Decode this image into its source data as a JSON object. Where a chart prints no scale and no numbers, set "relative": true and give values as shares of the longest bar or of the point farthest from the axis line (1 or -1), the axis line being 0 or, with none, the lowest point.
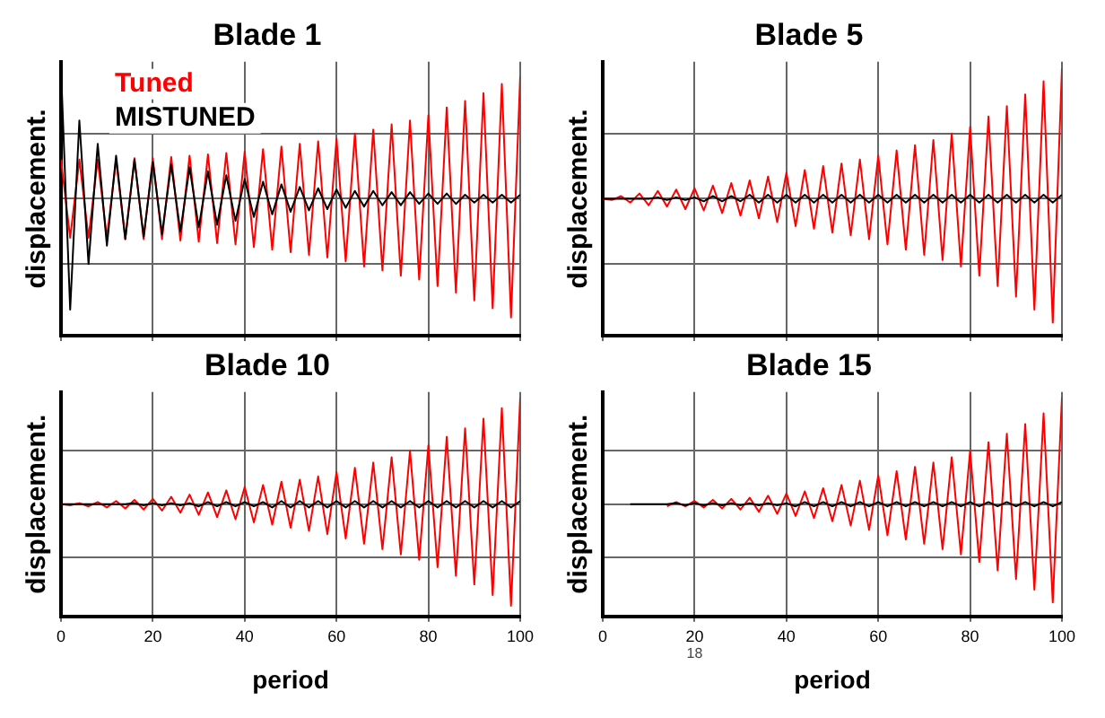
{
  "chart_data": [
    {
      "type": "line",
      "title": "Blade 1",
      "ylabel": "displacement.",
      "relative": true,
      "grid": true,
      "legend": false,
      "tick_labels": false,
      "marker": "none",
      "xlim": [
        0,
        100
      ],
      "xticks": [
        0,
        20,
        40,
        60,
        80,
        100
      ],
      "x": [
        0,
        2,
        4,
        6,
        8,
        10,
        12,
        14,
        16,
        18,
        20,
        22,
        24,
        26,
        28,
        30,
        32,
        34,
        36,
        38,
        40,
        42,
        44,
        46,
        48,
        50,
        52,
        54,
        56,
        58,
        60,
        62,
        64,
        66,
        68,
        70,
        72,
        74,
        76,
        78,
        80,
        82,
        84,
        86,
        88,
        90,
        92,
        94,
        96,
        98,
        100
      ],
      "series": [
        {
          "name": "Tuned",
          "color": "#ff0000",
          "values": [
            0.3,
            -0.3,
            0.3,
            -0.3,
            0.3,
            -0.3,
            0.3,
            -0.31,
            0.31,
            -0.31,
            0.31,
            -0.31,
            0.32,
            -0.32,
            0.33,
            -0.33,
            0.34,
            -0.34,
            0.35,
            -0.35,
            0.36,
            -0.37,
            0.38,
            -0.39,
            0.4,
            -0.41,
            0.42,
            -0.43,
            0.44,
            -0.45,
            0.46,
            -0.48,
            0.5,
            -0.52,
            0.53,
            -0.55,
            0.57,
            -0.59,
            0.6,
            -0.62,
            0.64,
            -0.67,
            0.7,
            -0.72,
            0.75,
            -0.78,
            0.81,
            -0.84,
            0.88,
            -0.91,
            0.94
          ]
        },
        {
          "name": "MISTUNED",
          "color": "#000000",
          "values": [
            1.0,
            -0.85,
            0.6,
            -0.5,
            0.42,
            -0.36,
            0.33,
            -0.31,
            0.3,
            -0.29,
            0.28,
            -0.27,
            0.26,
            -0.25,
            0.24,
            -0.22,
            0.21,
            -0.2,
            0.18,
            -0.17,
            0.15,
            -0.14,
            0.13,
            -0.12,
            0.11,
            -0.1,
            0.09,
            -0.09,
            0.08,
            -0.08,
            0.07,
            -0.07,
            0.06,
            -0.06,
            0.06,
            -0.05,
            0.05,
            -0.05,
            0.05,
            -0.04,
            0.04,
            -0.04,
            0.04,
            -0.04,
            0.03,
            -0.03,
            0.03,
            -0.03,
            0.03,
            -0.03,
            0.03
          ]
        }
      ]
    },
    {
      "type": "line",
      "title": "Blade 5",
      "ylabel": "displacement.",
      "relative": true,
      "grid": true,
      "legend": false,
      "tick_labels": false,
      "marker": "none",
      "xlim": [
        0,
        100
      ],
      "xticks": [
        0,
        20,
        40,
        60,
        80,
        100
      ],
      "x": [
        0,
        2,
        4,
        6,
        8,
        10,
        12,
        14,
        16,
        18,
        20,
        22,
        24,
        26,
        28,
        30,
        32,
        34,
        36,
        38,
        40,
        42,
        44,
        46,
        48,
        50,
        52,
        54,
        56,
        58,
        60,
        62,
        64,
        66,
        68,
        70,
        72,
        74,
        76,
        78,
        80,
        82,
        84,
        86,
        88,
        90,
        92,
        94,
        96,
        98,
        100
      ],
      "series": [
        {
          "color": "#ff0000",
          "values": [
            0,
            -0.01,
            0.02,
            -0.03,
            0.04,
            -0.05,
            0.06,
            -0.06,
            0.07,
            -0.08,
            0.08,
            -0.09,
            0.1,
            -0.11,
            0.12,
            -0.13,
            0.14,
            -0.15,
            0.17,
            -0.18,
            0.2,
            -0.21,
            0.22,
            -0.23,
            0.25,
            -0.26,
            0.27,
            -0.28,
            0.3,
            -0.31,
            0.33,
            -0.35,
            0.37,
            -0.39,
            0.41,
            -0.43,
            0.45,
            -0.47,
            0.5,
            -0.52,
            0.55,
            -0.59,
            0.63,
            -0.67,
            0.71,
            -0.75,
            0.8,
            -0.85,
            0.9,
            -0.95,
            1.0
          ]
        },
        {
          "color": "#000000",
          "values": [
            0,
            0,
            0,
            0,
            0,
            0,
            0.01,
            -0.01,
            0.01,
            -0.01,
            0.01,
            -0.02,
            0.02,
            -0.02,
            0.02,
            -0.02,
            0.03,
            -0.03,
            0.03,
            -0.03,
            0.03,
            -0.03,
            0.03,
            -0.03,
            0.03,
            -0.03,
            0.03,
            -0.03,
            0.03,
            -0.03,
            0.03,
            -0.03,
            0.03,
            -0.03,
            0.03,
            -0.03,
            0.03,
            -0.03,
            0.03,
            -0.03,
            0.03,
            -0.03,
            0.03,
            -0.03,
            0.03,
            -0.03,
            0.03,
            -0.03,
            0.03,
            -0.03,
            0.03
          ]
        }
      ]
    },
    {
      "type": "line",
      "title": "Blade 10",
      "xlabel": "period",
      "ylabel": "displacement.",
      "relative": true,
      "grid": true,
      "legend": false,
      "tick_labels": "x",
      "marker": "none",
      "xlim": [
        0,
        100
      ],
      "xticks": [
        0,
        20,
        40,
        60,
        80,
        100
      ],
      "x": [
        0,
        2,
        4,
        6,
        8,
        10,
        12,
        14,
        16,
        18,
        20,
        22,
        24,
        26,
        28,
        30,
        32,
        34,
        36,
        38,
        40,
        42,
        44,
        46,
        48,
        50,
        52,
        54,
        56,
        58,
        60,
        62,
        64,
        66,
        68,
        70,
        72,
        74,
        76,
        78,
        80,
        82,
        84,
        86,
        88,
        90,
        92,
        94,
        96,
        98,
        100
      ],
      "series": [
        {
          "color": "#ff0000",
          "values": [
            0,
            -0.01,
            0.01,
            -0.02,
            0.02,
            -0.03,
            0.03,
            -0.04,
            0.04,
            -0.05,
            0.05,
            -0.06,
            0.07,
            -0.08,
            0.09,
            -0.1,
            0.11,
            -0.12,
            0.13,
            -0.14,
            0.16,
            -0.17,
            0.18,
            -0.19,
            0.21,
            -0.22,
            0.23,
            -0.25,
            0.26,
            -0.28,
            0.3,
            -0.32,
            0.34,
            -0.37,
            0.39,
            -0.42,
            0.44,
            -0.47,
            0.5,
            -0.52,
            0.55,
            -0.59,
            0.63,
            -0.67,
            0.71,
            -0.75,
            0.8,
            -0.85,
            0.9,
            -0.95,
            1.0
          ]
        },
        {
          "color": "#000000",
          "values": [
            0,
            0,
            0,
            0,
            0,
            0,
            0,
            0,
            0.01,
            -0.01,
            0.01,
            -0.01,
            0.01,
            -0.01,
            0.01,
            -0.02,
            0.02,
            -0.02,
            0.02,
            -0.02,
            0.02,
            -0.02,
            0.02,
            -0.03,
            0.03,
            -0.03,
            0.03,
            -0.03,
            0.03,
            -0.03,
            0.03,
            -0.03,
            0.03,
            -0.03,
            0.03,
            -0.03,
            0.03,
            -0.03,
            0.03,
            -0.03,
            0.03,
            -0.03,
            0.03,
            -0.03,
            0.03,
            -0.03,
            0.03,
            -0.03,
            0.03,
            -0.03,
            0.03
          ]
        }
      ]
    },
    {
      "type": "line",
      "title": "Blade 15",
      "xlabel": "period",
      "ylabel": "displacement.",
      "relative": true,
      "grid": true,
      "legend": false,
      "tick_labels": "x",
      "marker": "none",
      "xlim": [
        0,
        100
      ],
      "xticks": [
        0,
        20,
        40,
        60,
        80,
        100
      ],
      "annotations": [
        "18"
      ],
      "series": [
        {
          "color": "#ff0000",
          "x": [
            14,
            16,
            18,
            20,
            22,
            24,
            26,
            28,
            30,
            32,
            34,
            36,
            38,
            40,
            42,
            44,
            46,
            48,
            50,
            52,
            54,
            56,
            58,
            60,
            62,
            64,
            66,
            68,
            70,
            72,
            74,
            76,
            78,
            80,
            82,
            84,
            86,
            88,
            90,
            92,
            94,
            96,
            98,
            100
          ],
          "values": [
            -0.02,
            0.02,
            -0.02,
            0.03,
            -0.03,
            0.04,
            -0.04,
            0.05,
            -0.05,
            0.06,
            -0.07,
            0.08,
            -0.09,
            0.1,
            -0.11,
            0.12,
            -0.13,
            0.15,
            -0.16,
            0.18,
            -0.2,
            0.22,
            -0.24,
            0.27,
            -0.29,
            0.31,
            -0.33,
            0.35,
            -0.37,
            0.39,
            -0.42,
            0.44,
            -0.47,
            0.5,
            -0.54,
            0.58,
            -0.62,
            0.66,
            -0.7,
            0.75,
            -0.8,
            0.85,
            -0.92,
            1.0
          ]
        },
        {
          "color": "#000000",
          "x": [
            6,
            8,
            10,
            12,
            14,
            16,
            18,
            20,
            22,
            24,
            26,
            28,
            30,
            32,
            34,
            36,
            38,
            40,
            42,
            44,
            46,
            48,
            50,
            52,
            54,
            56,
            58,
            60,
            62,
            64,
            66,
            68,
            70,
            72,
            74,
            76,
            78,
            80,
            82,
            84,
            86,
            88,
            90,
            92,
            94,
            96,
            98,
            100
          ],
          "values": [
            0,
            0,
            0,
            0,
            0,
            0.01,
            -0.01,
            0.01,
            -0.01,
            0.01,
            -0.01,
            0.01,
            -0.01,
            0.01,
            -0.01,
            0.01,
            -0.01,
            0.01,
            -0.02,
            0.02,
            -0.02,
            0.02,
            -0.02,
            0.02,
            -0.02,
            0.02,
            -0.02,
            0.02,
            -0.02,
            0.02,
            -0.02,
            0.02,
            -0.02,
            0.02,
            -0.02,
            0.02,
            -0.02,
            0.02,
            -0.02,
            0.02,
            -0.02,
            0.02,
            -0.02,
            0.02,
            -0.02,
            0.02,
            -0.02,
            0.02
          ]
        }
      ]
    }
  ]
}
